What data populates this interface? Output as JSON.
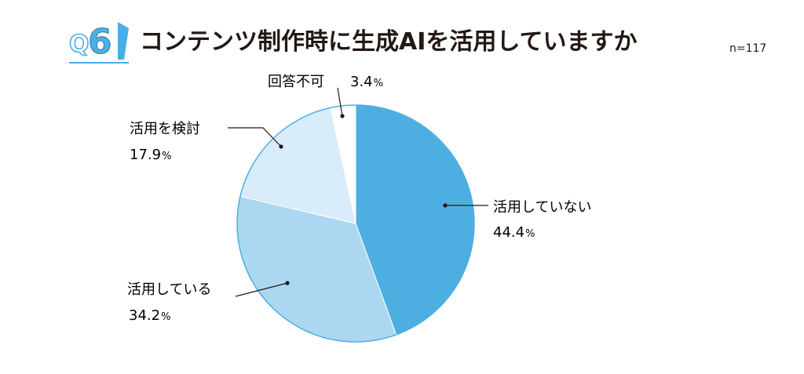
{
  "question": {
    "prefix": "Q",
    "number": "6",
    "accent_color": "#4aafe2"
  },
  "title": "コンテンツ制作時に生成AIを活用していますか",
  "sample_size": "n=117",
  "chart_data": {
    "type": "pie",
    "title": "コンテンツ制作時に生成AIを活用していますか",
    "slices": [
      {
        "label": "活用していない",
        "value": 44.4,
        "value_text": "44.4",
        "color": "#4daee1"
      },
      {
        "label": "活用している",
        "value": 34.2,
        "value_text": "34.2",
        "color": "#acd7f0"
      },
      {
        "label": "活用を検討",
        "value": 17.9,
        "value_text": "17.9",
        "color": "#d8ecf9"
      },
      {
        "label": "回答不可",
        "value": 3.4,
        "value_text": "3.4",
        "color": "#ffffff"
      }
    ],
    "percent_sign": "%",
    "start": "12 o'clock",
    "direction": "clockwise",
    "outline_color": "#4aafe2"
  }
}
